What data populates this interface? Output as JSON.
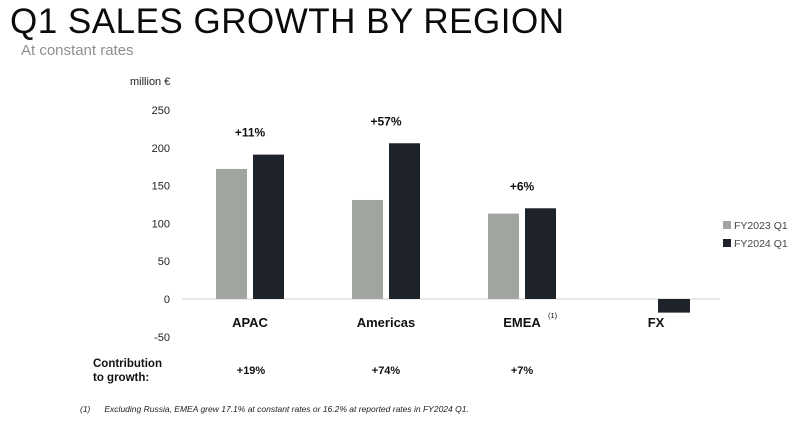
{
  "title": "Q1 SALES GROWTH BY REGION",
  "subtitle": "At constant rates",
  "unit_label": "million €",
  "chart_data": {
    "type": "bar",
    "title": "Q1 SALES GROWTH BY REGION",
    "subtitle": "At constant rates",
    "ylabel": "million €",
    "xlabel": "",
    "ylim": [
      -50,
      250
    ],
    "yticks": [
      -50,
      0,
      50,
      100,
      150,
      200,
      250
    ],
    "grid": false,
    "legend_position": "right",
    "categories": [
      "APAC",
      "Americas",
      "EMEA",
      "FX"
    ],
    "category_notes": [
      "",
      "",
      "(1)",
      ""
    ],
    "series": [
      {
        "name": "FY2023 Q1",
        "color": "#a0a69f",
        "values": [
          172,
          131,
          113,
          null
        ]
      },
      {
        "name": "FY2024 Q1",
        "color": "#1e222b",
        "values": [
          191,
          206,
          120,
          -18
        ]
      }
    ],
    "growth_labels": [
      "+11%",
      "+57%",
      "+6%",
      ""
    ]
  },
  "contribution": {
    "label_line1": "Contribution",
    "label_line2": "to growth:",
    "values": [
      "+19%",
      "+74%",
      "+7%"
    ]
  },
  "footnote": {
    "marker": "(1)",
    "text": "Excluding Russia, EMEA grew 17.1% at constant rates or 16.2% at reported rates in FY2024 Q1."
  }
}
